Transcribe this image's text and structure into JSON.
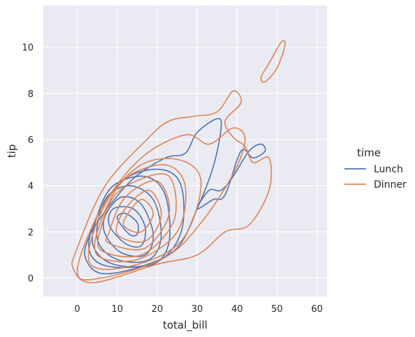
{
  "chart_data": {
    "type": "kde-contour",
    "xlabel": "total_bill",
    "ylabel": "tip",
    "xlim": [
      -8.5,
      62.5
    ],
    "ylim": [
      -0.8,
      11.8
    ],
    "xticks": [
      0,
      10,
      20,
      30,
      40,
      50,
      60
    ],
    "yticks": [
      0,
      2,
      4,
      6,
      8,
      10
    ],
    "grid": true,
    "background": "#eaeaf2",
    "legend": {
      "title": "time",
      "placement": "right",
      "entries": [
        "Lunch",
        "Dinner"
      ]
    },
    "series": [
      {
        "name": "Lunch",
        "color": "#4c72b0",
        "contours": [
          [
            [
              10,
              2.6
            ],
            [
              13,
              1.9
            ],
            [
              15,
              1.9
            ],
            [
              15,
              2.4
            ],
            [
              12,
              2.8
            ],
            [
              10,
              2.6
            ]
          ],
          [
            [
              8,
              2.3
            ],
            [
              12,
              1.5
            ],
            [
              16,
              1.4
            ],
            [
              17,
              2.2
            ],
            [
              14,
              3.0
            ],
            [
              9,
              3.0
            ],
            [
              8,
              2.3
            ]
          ],
          [
            [
              7,
              1.9
            ],
            [
              11,
              1.1
            ],
            [
              17,
              1.0
            ],
            [
              19,
              1.9
            ],
            [
              16,
              3.2
            ],
            [
              11,
              3.5
            ],
            [
              7,
              2.7
            ],
            [
              7,
              1.9
            ]
          ],
          [
            [
              5,
              1.7
            ],
            [
              10,
              0.8
            ],
            [
              18,
              0.8
            ],
            [
              21,
              1.8
            ],
            [
              19,
              3.4
            ],
            [
              13,
              4.0
            ],
            [
              7,
              3.4
            ],
            [
              5,
              1.7
            ]
          ],
          [
            [
              4,
              1.4
            ],
            [
              9,
              0.6
            ],
            [
              19,
              0.6
            ],
            [
              23,
              1.6
            ],
            [
              22,
              3.6
            ],
            [
              17,
              4.4
            ],
            [
              9,
              4.0
            ],
            [
              5,
              2.7
            ],
            [
              4,
              1.4
            ]
          ],
          [
            [
              3,
              1.2
            ],
            [
              8,
              0.5
            ],
            [
              20,
              0.7
            ],
            [
              26,
              2.0
            ],
            [
              26,
              4.0
            ],
            [
              21,
              4.7
            ],
            [
              12,
              4.3
            ],
            [
              5,
              2.7
            ],
            [
              3,
              1.2
            ]
          ],
          [
            [
              2,
              0.9
            ],
            [
              6,
              0.2
            ],
            [
              16,
              0.5
            ],
            [
              25,
              1.3
            ],
            [
              30,
              3.0
            ],
            [
              34,
              4.8
            ],
            [
              36,
              6.5
            ],
            [
              35,
              6.9
            ],
            [
              30,
              6.3
            ],
            [
              27,
              5.4
            ],
            [
              22,
              5.2
            ],
            [
              14,
              4.3
            ],
            [
              7,
              2.9
            ],
            [
              3,
              1.8
            ],
            [
              2,
              0.9
            ]
          ],
          [
            [
              30,
              3.0
            ],
            [
              34,
              3.4
            ],
            [
              37,
              3.6
            ],
            [
              41,
              5.5
            ],
            [
              44,
              5.2
            ],
            [
              47,
              5.5
            ],
            [
              46,
              5.8
            ],
            [
              43,
              5.5
            ],
            [
              39,
              4.4
            ],
            [
              36,
              3.8
            ],
            [
              33,
              3.8
            ],
            [
              30,
              3.0
            ]
          ]
        ]
      },
      {
        "name": "Dinner",
        "color": "#dd8452",
        "contours": [
          [
            [
              12,
              2.2
            ],
            [
              16,
              2.0
            ],
            [
              19,
              2.8
            ],
            [
              16,
              3.4
            ],
            [
              12,
              2.6
            ],
            [
              12,
              2.2
            ]
          ],
          [
            [
              10,
              1.9
            ],
            [
              17,
              1.6
            ],
            [
              21,
              2.7
            ],
            [
              18,
              3.8
            ],
            [
              12,
              3.0
            ],
            [
              10,
              1.9
            ]
          ],
          [
            [
              8,
              1.5
            ],
            [
              17,
              1.3
            ],
            [
              23,
              2.8
            ],
            [
              20,
              4.2
            ],
            [
              12,
              3.5
            ],
            [
              8,
              2.0
            ],
            [
              8,
              1.5
            ]
          ],
          [
            [
              6,
              1.2
            ],
            [
              16,
              1.0
            ],
            [
              24,
              2.4
            ],
            [
              24,
              4.1
            ],
            [
              20,
              4.5
            ],
            [
              10,
              3.7
            ],
            [
              6,
              2.2
            ],
            [
              6,
              1.2
            ]
          ],
          [
            [
              5,
              1.0
            ],
            [
              15,
              0.8
            ],
            [
              25,
              2.0
            ],
            [
              27,
              4.0
            ],
            [
              22,
              4.9
            ],
            [
              12,
              4.3
            ],
            [
              6,
              2.5
            ],
            [
              5,
              1.0
            ]
          ],
          [
            [
              3,
              0.7
            ],
            [
              13,
              0.5
            ],
            [
              26,
              1.6
            ],
            [
              31,
              4.1
            ],
            [
              26,
              5.1
            ],
            [
              16,
              4.9
            ],
            [
              7,
              3.2
            ],
            [
              3,
              0.7
            ]
          ],
          [
            [
              0,
              0.3
            ],
            [
              6,
              0
            ],
            [
              22,
              0.9
            ],
            [
              31,
              2.4
            ],
            [
              39,
              4.5
            ],
            [
              42,
              6.0
            ],
            [
              39,
              6.5
            ],
            [
              33,
              5.8
            ],
            [
              27,
              6.2
            ],
            [
              16,
              5.2
            ],
            [
              6,
              3.0
            ],
            [
              0,
              0.3
            ]
          ],
          [
            [
              -1,
              0.4
            ],
            [
              4,
              -0.2
            ],
            [
              20,
              0.6
            ],
            [
              30,
              1.0
            ],
            [
              37,
              2.0
            ],
            [
              43,
              2.3
            ],
            [
              48,
              3.8
            ],
            [
              48,
              5.2
            ],
            [
              44,
              5.0
            ],
            [
              42,
              5.7
            ],
            [
              39,
              6.1
            ],
            [
              37,
              6.8
            ],
            [
              41,
              7.6
            ],
            [
              39,
              8.1
            ],
            [
              35,
              7.2
            ],
            [
              29,
              7.0
            ],
            [
              23,
              6.8
            ],
            [
              18,
              6.1
            ],
            [
              7,
              4.0
            ],
            [
              0,
              1.3
            ],
            [
              -1,
              0.4
            ]
          ],
          [
            [
              47,
              8.5
            ],
            [
              50,
              9.1
            ],
            [
              52,
              10.1
            ],
            [
              51,
              10.2
            ],
            [
              48,
              9.3
            ],
            [
              46,
              8.7
            ],
            [
              47,
              8.5
            ]
          ]
        ]
      }
    ]
  }
}
